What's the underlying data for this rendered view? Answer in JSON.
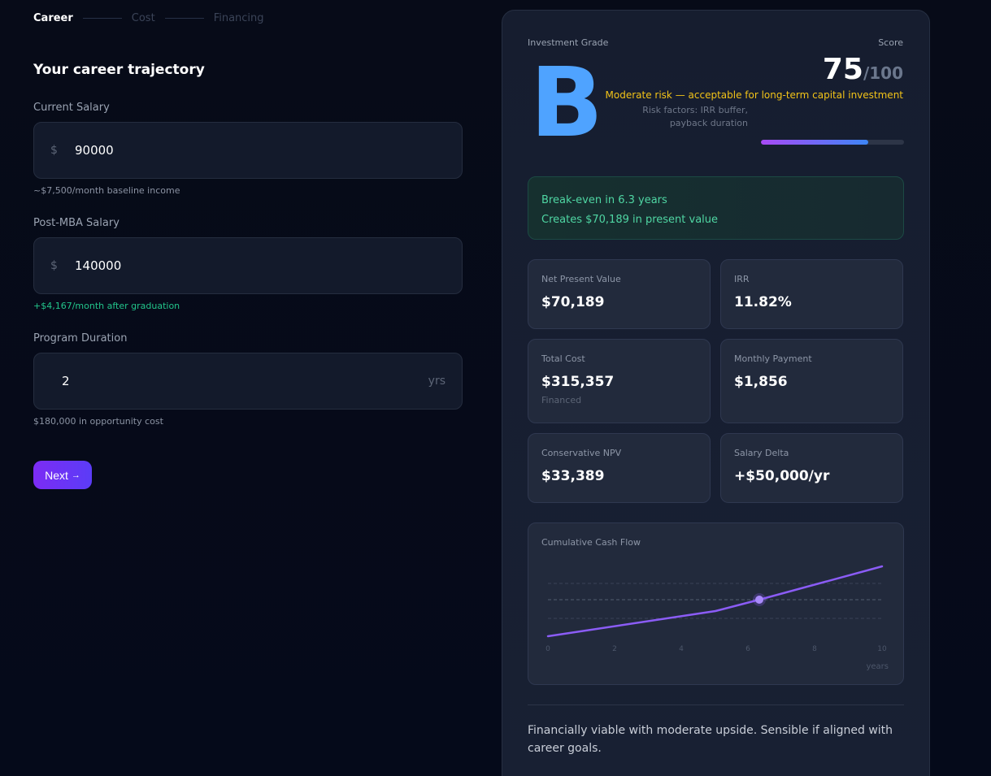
{
  "stepper": {
    "steps": [
      {
        "label": "Career",
        "active": true
      },
      {
        "label": "Cost",
        "active": false
      },
      {
        "label": "Financing",
        "active": false
      }
    ]
  },
  "form": {
    "title": "Your career trajectory",
    "fields": [
      {
        "label": "Current Salary",
        "prefix": "$",
        "value": "90000",
        "suffix": "",
        "hint": "~$7,500/month baseline income"
      },
      {
        "label": "Post-MBA Salary",
        "prefix": "$",
        "value": "140000",
        "suffix": "",
        "hint": "+$4,167/month after graduation"
      },
      {
        "label": "Program Duration",
        "prefix": "",
        "value": "2",
        "suffix": "yrs",
        "hint": "$180,000 in opportunity cost"
      }
    ],
    "next_label": "Next",
    "next_icon": "→"
  },
  "results": {
    "grade_label": "Investment Grade",
    "grade": "B",
    "score_label": "Score",
    "score": "75",
    "score_max": "/100",
    "score_pct": 75,
    "risk_text": "Moderate risk — acceptable for long-term capital investment",
    "risk_factors": "Risk factors: IRR buffer, payback duration",
    "breakeven_line": "Break-even in 6.3 years",
    "pv_line": "Creates $70,189 in present value",
    "metrics": [
      {
        "label": "Net Present Value",
        "value": "$70,189",
        "sub": ""
      },
      {
        "label": "IRR",
        "value": "11.82%",
        "sub": ""
      },
      {
        "label": "Total Cost",
        "value": "$315,357",
        "sub": "Financed"
      },
      {
        "label": "Monthly Payment",
        "value": "$1,856",
        "sub": ""
      },
      {
        "label": "Conservative NPV",
        "value": "$33,389",
        "sub": ""
      },
      {
        "label": "Salary Delta",
        "value": "+$50,000/yr",
        "sub": ""
      }
    ],
    "summary": "Financially viable with moderate upside. Sensible if aligned with career goals.",
    "colors": {
      "grade": "#4fa3ff",
      "risk": "#f2c318",
      "positive": "#4fd6a3",
      "accent": "#8b5cf6",
      "button_start": "#7c2cf5",
      "button_end": "#5b3cf6"
    }
  },
  "chart_data": {
    "type": "line",
    "title": "Cumulative Cash Flow",
    "xlabel": "years",
    "ylabel": "",
    "x_ticks": [
      0,
      2,
      4,
      6,
      8,
      10
    ],
    "x": [
      0,
      5,
      6.3,
      10
    ],
    "values": [
      -1.0,
      -0.3,
      0.0,
      0.95
    ],
    "y_units": "relative (zero line at break-even)",
    "marker": {
      "x": 6.3,
      "y": 0,
      "label": "break-even"
    },
    "grid": "dashed horizontal",
    "xlim": [
      0,
      10
    ]
  }
}
